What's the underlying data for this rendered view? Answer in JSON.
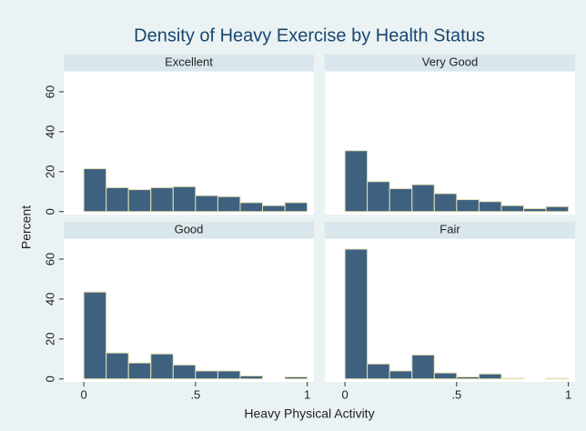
{
  "title": "Density of Heavy Exercise by Health Status",
  "x_label": "Heavy Physical Activity",
  "y_label": "Percent",
  "chart_data": [
    {
      "type": "histogram",
      "title": "Excellent",
      "bins": [
        0,
        0.1,
        0.2,
        0.3,
        0.4,
        0.5,
        0.6,
        0.7,
        0.8,
        0.9,
        1
      ],
      "values": [
        21.5,
        12,
        11,
        12,
        12.5,
        8,
        7.5,
        4.5,
        3,
        4.5
      ],
      "color": "#3e6180",
      "xlim": [
        -0.09,
        1.03
      ],
      "ylim": [
        -1.5,
        70
      ],
      "yticks": [
        0,
        20,
        40,
        60
      ]
    },
    {
      "type": "histogram",
      "title": "Very Good",
      "bins": [
        0,
        0.1,
        0.2,
        0.3,
        0.4,
        0.5,
        0.6,
        0.7,
        0.8,
        0.9,
        1
      ],
      "values": [
        30.5,
        15,
        11.5,
        13.5,
        9,
        6,
        5,
        3,
        1.5,
        2.5
      ],
      "color": "#3e6180",
      "xlim": [
        -0.09,
        1.03
      ],
      "ylim": [
        -1.5,
        70
      ]
    },
    {
      "type": "histogram",
      "title": "Good",
      "bins": [
        0,
        0.1,
        0.2,
        0.3,
        0.4,
        0.5,
        0.6,
        0.7,
        0.8,
        0.9,
        1
      ],
      "values": [
        43.5,
        13,
        8,
        12.5,
        7,
        4,
        4,
        1.5,
        0,
        1
      ],
      "color": "#3e6180",
      "xlim": [
        -0.09,
        1.03
      ],
      "ylim": [
        -1.5,
        70
      ],
      "yticks": [
        0,
        20,
        40,
        60
      ],
      "xticks": [
        0,
        {
          "value": 0.5,
          "label": ".5"
        },
        1
      ]
    },
    {
      "type": "histogram",
      "title": "Fair",
      "bins": [
        0,
        0.1,
        0.2,
        0.3,
        0.4,
        0.5,
        0.6,
        0.7,
        0.8,
        0.9,
        1
      ],
      "values": [
        65,
        7.5,
        4,
        12,
        3,
        1,
        2.5,
        0.3,
        0,
        0.3
      ],
      "color": "#3e6180",
      "xlim": [
        -0.09,
        1.03
      ],
      "ylim": [
        -1.5,
        70
      ],
      "xticks": [
        0,
        {
          "value": 0.5,
          "label": ".5"
        },
        1
      ]
    }
  ]
}
